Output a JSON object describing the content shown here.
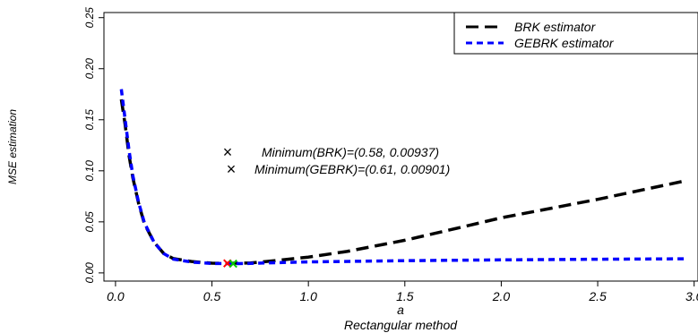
{
  "chart_data": {
    "type": "line",
    "title": "",
    "xlabel": "a",
    "subtitle": "Rectangular method",
    "ylabel": "MSE estimation",
    "xlim": [
      -0.06,
      3.02
    ],
    "ylim": [
      -0.008,
      0.255
    ],
    "x_ticks": [
      "0.0",
      "0.5",
      "1.0",
      "1.5",
      "2.0",
      "2.5",
      "3.0"
    ],
    "y_ticks": [
      "0.00",
      "0.05",
      "0.10",
      "0.15",
      "0.20",
      "0.25"
    ],
    "legend_position": "top-right",
    "series": [
      {
        "name": "BRK estimator",
        "color": "#000000",
        "style": "longdash",
        "x": [
          0.03,
          0.05,
          0.07,
          0.09,
          0.12,
          0.15,
          0.2,
          0.25,
          0.3,
          0.4,
          0.5,
          0.58,
          0.7,
          0.8,
          1.0,
          1.2,
          1.5,
          1.8,
          2.0,
          2.5,
          2.95
        ],
        "values": [
          0.17,
          0.145,
          0.115,
          0.093,
          0.068,
          0.048,
          0.03,
          0.019,
          0.014,
          0.011,
          0.0095,
          0.00937,
          0.0098,
          0.0115,
          0.0155,
          0.021,
          0.032,
          0.045,
          0.054,
          0.072,
          0.09
        ]
      },
      {
        "name": "GEBRK estimator",
        "color": "#0000ff",
        "style": "dashed",
        "x": [
          0.03,
          0.05,
          0.07,
          0.09,
          0.12,
          0.15,
          0.2,
          0.25,
          0.3,
          0.4,
          0.5,
          0.61,
          0.7,
          0.8,
          1.0,
          1.5,
          2.0,
          2.5,
          2.95
        ],
        "values": [
          0.18,
          0.15,
          0.12,
          0.095,
          0.069,
          0.049,
          0.03,
          0.019,
          0.0135,
          0.0105,
          0.0093,
          0.00901,
          0.0093,
          0.0099,
          0.0108,
          0.012,
          0.0128,
          0.0134,
          0.0138
        ]
      }
    ],
    "annotations": [
      {
        "text": "Minimum(BRK)=(0.58, 0.00937)",
        "marker": "×",
        "color": "#ff0000",
        "x": 0.58,
        "y": 0.00937
      },
      {
        "text": "Minimum(GEBRK)=(0.61, 0.00901)",
        "marker": "×",
        "color": "#00c800",
        "x": 0.61,
        "y": 0.00901
      }
    ]
  }
}
